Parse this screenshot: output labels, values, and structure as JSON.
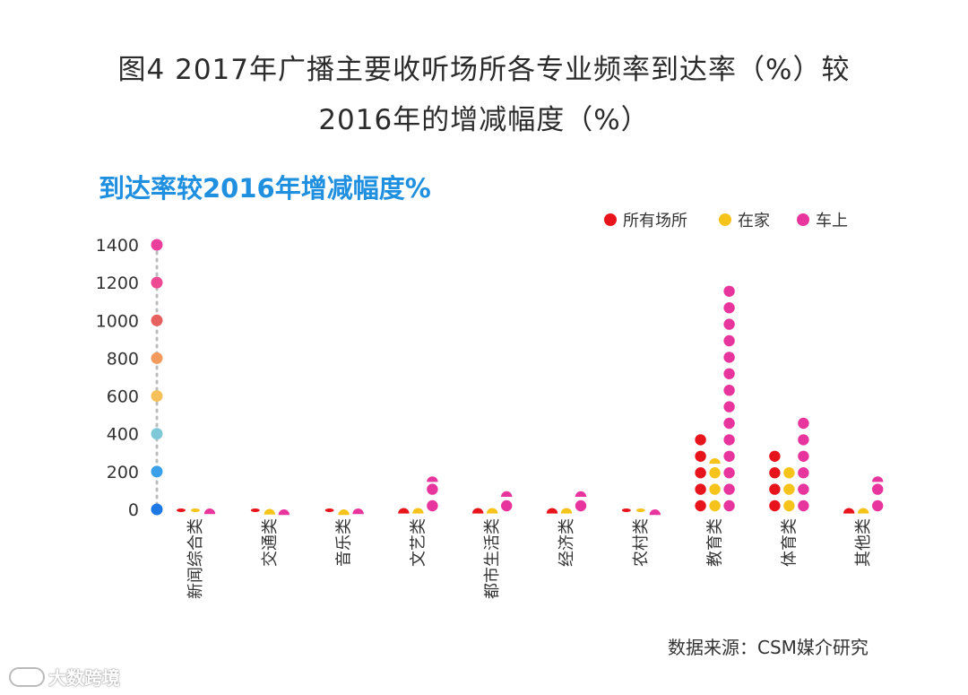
{
  "title_line1": "图4  2017年广播主要收听场所各专业频率到达率（%）较",
  "title_line2": "2016年的增减幅度（%）",
  "subtitle": "到达率较2016年增减幅度%",
  "source": "数据来源：CSM媒介研究",
  "watermark": "大数跨境",
  "colors": {
    "series": [
      "#e8141c",
      "#f5c31a",
      "#e8359e"
    ],
    "axis_dots": [
      "#1e78e6",
      "#3aa0ea",
      "#7ec8d8",
      "#f6c15a",
      "#f39a5d",
      "#e5605f",
      "#ee4a94",
      "#ec3f9d"
    ]
  },
  "chart_data": {
    "type": "scatter",
    "title": "到达率较2016年增减幅度%",
    "categories": [
      "新闻综合类",
      "交通类",
      "音乐类",
      "文艺类",
      "都市生活类",
      "经济类",
      "农村类",
      "教育类",
      "体育类",
      "其他类"
    ],
    "series": [
      {
        "name": "所有场所",
        "values": [
          -10,
          -5,
          -10,
          25,
          25,
          25,
          -15,
          390,
          295,
          25
        ]
      },
      {
        "name": "在家",
        "values": [
          -10,
          15,
          10,
          25,
          25,
          25,
          -15,
          290,
          215,
          25
        ]
      },
      {
        "name": "车上",
        "values": [
          20,
          10,
          20,
          185,
          115,
          115,
          10,
          1185,
          475,
          185
        ]
      }
    ],
    "y_ticks": [
      0,
      200,
      400,
      600,
      800,
      1000,
      1200,
      1400
    ],
    "ylim": [
      0,
      1400
    ],
    "legend_position": "top-right",
    "grid": false
  }
}
